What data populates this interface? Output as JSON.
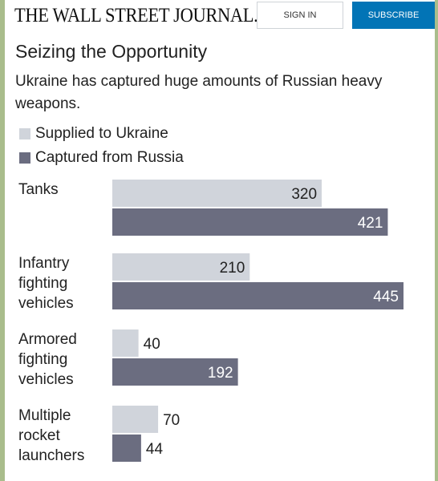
{
  "header": {
    "logo": "THE WALL STREET JOURNAL.",
    "signin_label": "SIGN IN",
    "subscribe_label": "SUBSCRIBE"
  },
  "colors": {
    "supplied": "#d0d4db",
    "captured": "#6b6d80",
    "subscribe": "#0274b6"
  },
  "chart_data": {
    "type": "bar",
    "orientation": "horizontal",
    "title": "Seizing the Opportunity",
    "subtitle": "Ukraine has captured huge amounts of Russian heavy weapons.",
    "categories": [
      [
        "Tanks"
      ],
      [
        "Infantry",
        "fighting",
        "vehicles"
      ],
      [
        "Armored",
        "fighting",
        "vehicles"
      ],
      [
        "Multiple",
        "rocket",
        "launchers"
      ]
    ],
    "series": [
      {
        "name": "Supplied to Ukraine",
        "values": [
          320,
          210,
          40,
          70
        ]
      },
      {
        "name": "Captured from Russia",
        "values": [
          421,
          445,
          192,
          44
        ]
      }
    ],
    "legend_position": "top-left",
    "grid": false
  }
}
